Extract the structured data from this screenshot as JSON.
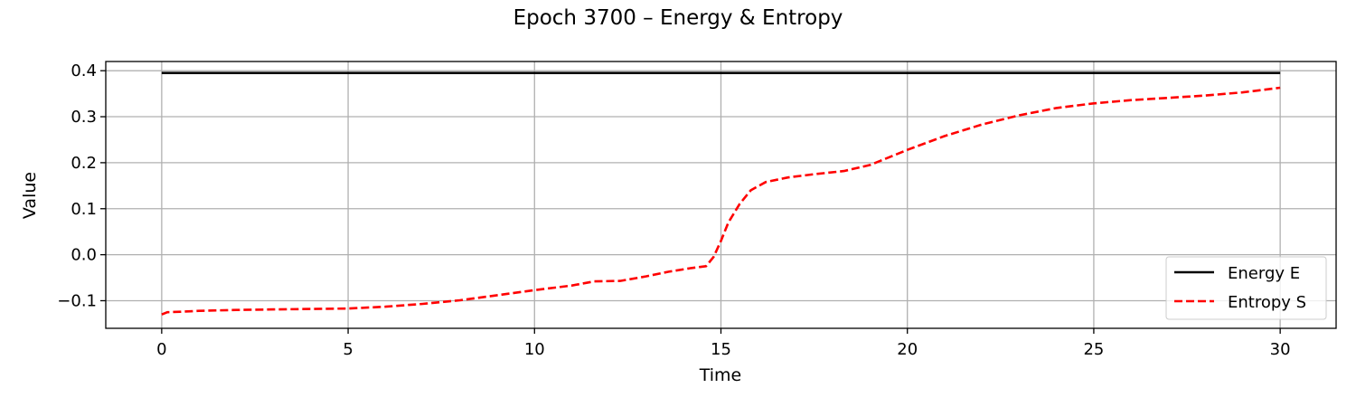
{
  "chart_data": {
    "type": "line",
    "title": "Epoch 3700 – Energy & Entropy",
    "xlabel": "Time",
    "ylabel": "Value",
    "xlim": [
      -1.5,
      31.5
    ],
    "ylim": [
      -0.16,
      0.42
    ],
    "xticks": [
      0,
      5,
      10,
      15,
      20,
      25,
      30
    ],
    "xtick_labels": [
      "0",
      "5",
      "10",
      "15",
      "20",
      "25",
      "30"
    ],
    "yticks": [
      -0.1,
      0.0,
      0.1,
      0.2,
      0.3,
      0.4
    ],
    "ytick_labels": [
      "−0.1",
      "0.0",
      "0.1",
      "0.2",
      "0.3",
      "0.4"
    ],
    "grid": true,
    "legend_position": "lower-right",
    "series": [
      {
        "name": "Energy E",
        "color": "#000000",
        "linestyle": "solid",
        "x": [
          0,
          30
        ],
        "y": [
          0.395,
          0.395
        ]
      },
      {
        "name": "Entropy S",
        "color": "#ff0000",
        "linestyle": "dashed",
        "x": [
          0,
          0.15,
          0.5,
          1,
          2,
          3,
          4,
          5,
          6,
          7,
          8,
          9,
          10,
          11,
          11.6,
          12.3,
          13,
          13.6,
          14.2,
          14.6,
          14.8,
          15.0,
          15.2,
          15.5,
          15.8,
          16.2,
          16.8,
          17.5,
          18.3,
          19,
          20,
          21,
          22,
          23,
          24,
          25,
          26,
          27,
          28,
          29,
          30
        ],
        "y": [
          -0.13,
          -0.125,
          -0.124,
          -0.122,
          -0.12,
          -0.119,
          -0.118,
          -0.117,
          -0.113,
          -0.107,
          -0.099,
          -0.088,
          -0.077,
          -0.067,
          -0.058,
          -0.057,
          -0.047,
          -0.037,
          -0.029,
          -0.025,
          -0.005,
          0.03,
          0.07,
          0.11,
          0.14,
          0.158,
          0.168,
          0.175,
          0.182,
          0.195,
          0.228,
          0.258,
          0.283,
          0.303,
          0.319,
          0.329,
          0.336,
          0.341,
          0.346,
          0.353,
          0.363
        ]
      }
    ]
  }
}
